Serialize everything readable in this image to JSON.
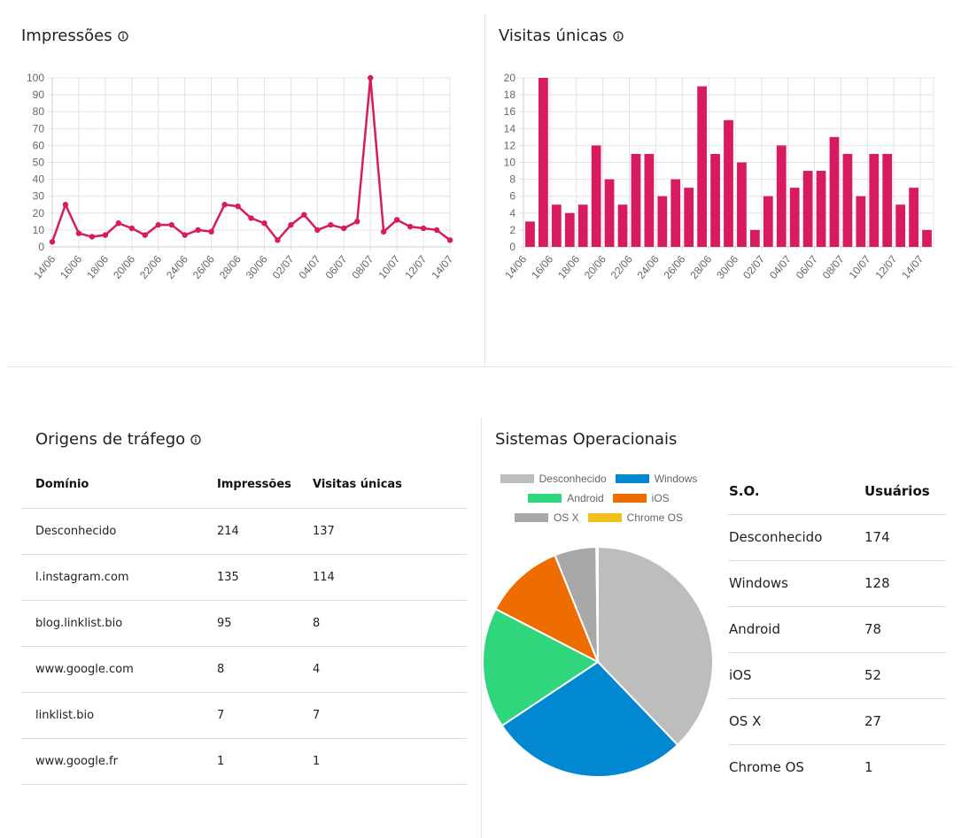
{
  "impressions": {
    "title": "Impressões",
    "chart_data": {
      "type": "line",
      "color": "#d81b60",
      "x": [
        "14/06",
        "15/06",
        "16/06",
        "17/06",
        "18/06",
        "19/06",
        "20/06",
        "21/06",
        "22/06",
        "23/06",
        "24/06",
        "25/06",
        "26/06",
        "27/06",
        "28/06",
        "29/06",
        "30/06",
        "01/07",
        "02/07",
        "03/07",
        "04/07",
        "05/07",
        "06/07",
        "07/07",
        "08/07",
        "09/07",
        "10/07",
        "11/07",
        "12/07",
        "13/07",
        "14/07"
      ],
      "values": [
        3,
        25,
        8,
        6,
        7,
        14,
        11,
        7,
        13,
        13,
        7,
        10,
        9,
        25,
        24,
        17,
        14,
        4,
        13,
        19,
        10,
        13,
        11,
        15,
        100,
        9,
        16,
        12,
        11,
        10,
        4
      ],
      "ylim": [
        0,
        100
      ],
      "yticks": [
        0,
        10,
        20,
        30,
        40,
        50,
        60,
        70,
        80,
        90,
        100
      ],
      "xticks": [
        "14/06",
        "16/06",
        "18/06",
        "20/06",
        "22/06",
        "24/06",
        "26/06",
        "28/06",
        "30/06",
        "02/07",
        "04/07",
        "06/07",
        "08/07",
        "10/07",
        "12/07",
        "14/07"
      ],
      "grid": true
    }
  },
  "unique_visits": {
    "title": "Visitas únicas",
    "chart_data": {
      "type": "bar",
      "color": "#d81b60",
      "x": [
        "14/06",
        "15/06",
        "16/06",
        "17/06",
        "18/06",
        "19/06",
        "20/06",
        "21/06",
        "22/06",
        "23/06",
        "24/06",
        "25/06",
        "26/06",
        "27/06",
        "28/06",
        "29/06",
        "30/06",
        "01/07",
        "02/07",
        "03/07",
        "04/07",
        "05/07",
        "06/07",
        "07/07",
        "08/07",
        "09/07",
        "10/07",
        "11/07",
        "12/07",
        "13/07",
        "14/07"
      ],
      "values": [
        3,
        20,
        5,
        4,
        5,
        12,
        8,
        5,
        11,
        11,
        6,
        8,
        7,
        19,
        11,
        15,
        10,
        2,
        6,
        12,
        7,
        9,
        9,
        13,
        11,
        6,
        11,
        11,
        5,
        7,
        2
      ],
      "ylim": [
        0,
        20
      ],
      "yticks": [
        0,
        2,
        4,
        6,
        8,
        10,
        12,
        14,
        16,
        18,
        20
      ],
      "xticks": [
        "14/06",
        "16/06",
        "18/06",
        "20/06",
        "22/06",
        "24/06",
        "26/06",
        "28/06",
        "30/06",
        "02/07",
        "04/07",
        "06/07",
        "08/07",
        "10/07",
        "12/07",
        "14/07"
      ],
      "grid": true
    }
  },
  "traffic": {
    "title": "Origens de tráfego",
    "headers": [
      "Domínio",
      "Impressões",
      "Visitas únicas"
    ],
    "rows": [
      [
        "Desconhecido",
        "214",
        "137"
      ],
      [
        "l.instagram.com",
        "135",
        "114"
      ],
      [
        "blog.linklist.bio",
        "95",
        "8"
      ],
      [
        "www.google.com",
        "8",
        "4"
      ],
      [
        "linklist.bio",
        "7",
        "7"
      ],
      [
        "www.google.fr",
        "1",
        "1"
      ]
    ]
  },
  "os": {
    "title": "Sistemas Operacionais",
    "headers": [
      "S.O.",
      "Usuários"
    ],
    "rows": [
      [
        "Desconhecido",
        "174"
      ],
      [
        "Windows",
        "128"
      ],
      [
        "Android",
        "78"
      ],
      [
        "iOS",
        "52"
      ],
      [
        "OS X",
        "27"
      ],
      [
        "Chrome OS",
        "1"
      ]
    ],
    "chart_data": {
      "type": "pie",
      "labels": [
        "Desconhecido",
        "Windows",
        "Android",
        "iOS",
        "OS X",
        "Chrome OS"
      ],
      "values": [
        174,
        128,
        78,
        52,
        27,
        1
      ],
      "colors": [
        "#bdbdbd",
        "#0288d1",
        "#2fd67b",
        "#ef6c00",
        "#a8a8a8",
        "#f3c01c"
      ],
      "legend_position": "top"
    }
  }
}
